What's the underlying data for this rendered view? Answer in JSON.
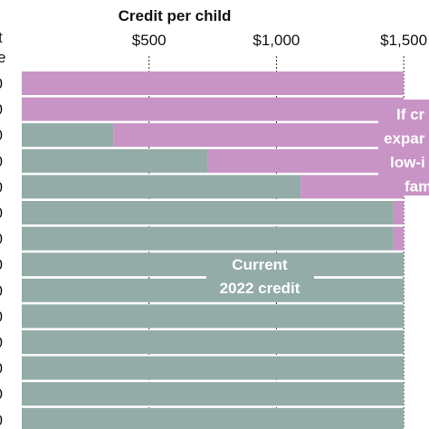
{
  "chart_data": {
    "type": "bar",
    "orientation": "horizontal",
    "stacked": true,
    "title": "Credit per child",
    "xlim": [
      0,
      1600
    ],
    "x_ticks": [
      500,
      1000,
      1500
    ],
    "x_tick_labels": [
      "$500",
      "$1,000",
      "$1,500"
    ],
    "grid": true,
    "row_count": 14,
    "y_tick_labels": [
      "0",
      "0",
      "0",
      "0",
      "0",
      "0",
      "0",
      "0",
      "0",
      "0",
      "0",
      "0",
      "0",
      "0"
    ],
    "y_header_fragments": [
      "t",
      "e"
    ],
    "series": [
      {
        "name": "Current 2022 credit",
        "values": [
          0,
          0,
          360,
          730,
          1095,
          1460,
          1460,
          1500,
          1500,
          1500,
          1500,
          1500,
          1500,
          1500
        ]
      },
      {
        "name": "If credit expanded for low-income families",
        "values": [
          1500,
          1500,
          1140,
          770,
          405,
          40,
          40,
          0,
          0,
          0,
          0,
          0,
          0,
          0
        ]
      }
    ],
    "annotations": [
      {
        "id": "current",
        "lines": [
          "Current",
          "2022 credit"
        ]
      },
      {
        "id": "expanded",
        "lines": [
          "If cr",
          "expar",
          "low-i",
          "fam"
        ]
      }
    ],
    "colors": {
      "current": "#93aca7",
      "expanded": "#c893c5",
      "grid": "#333333",
      "separator": "#ffffff"
    }
  }
}
